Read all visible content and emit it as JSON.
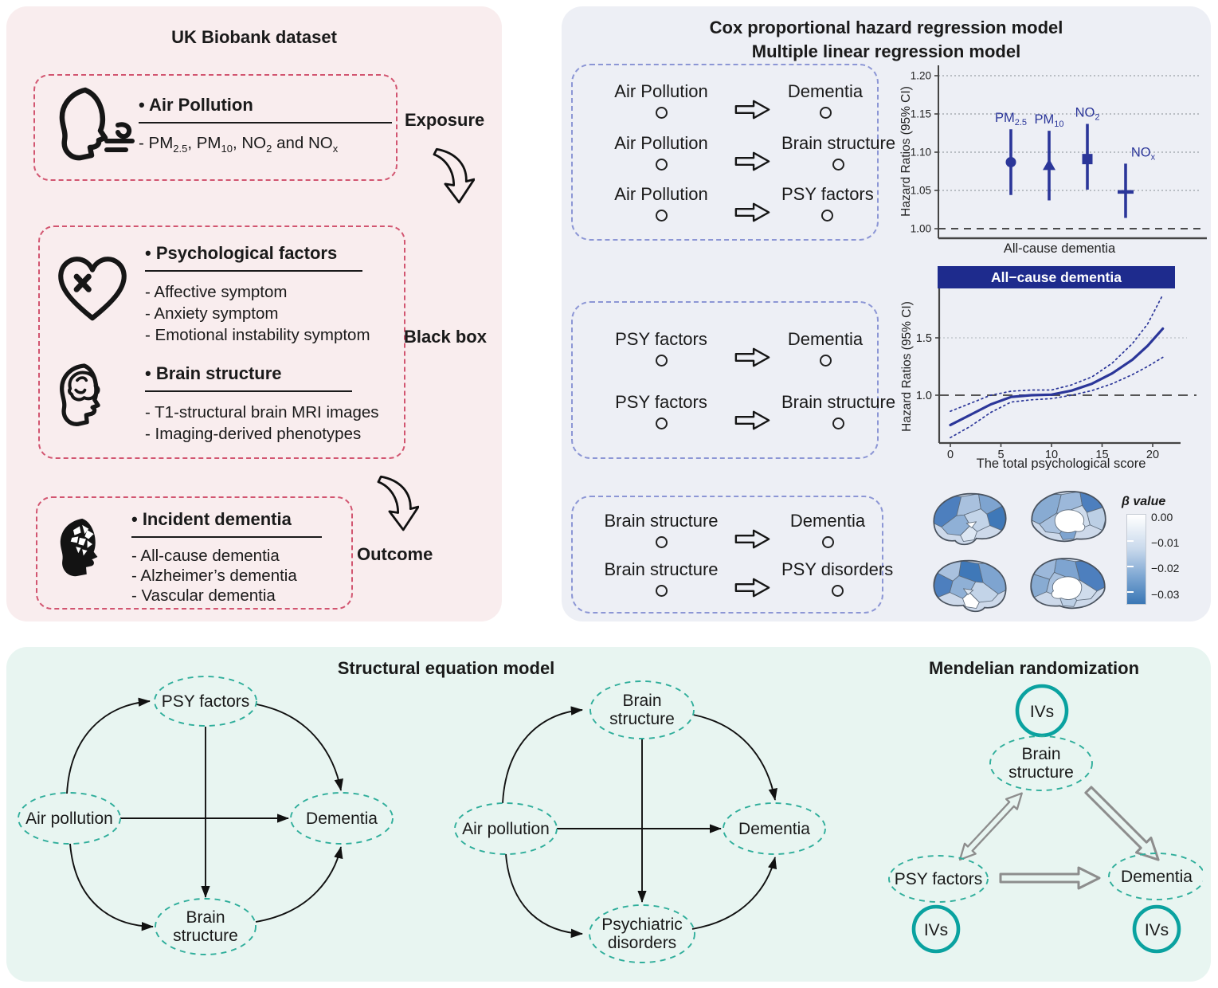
{
  "left_panel": {
    "title": "UK Biobank dataset",
    "exposure_label": "Exposure",
    "blackbox_label": "Black box",
    "outcome_label": "Outcome",
    "air_pollution": {
      "heading": "• Air Pollution",
      "pollutants": {
        "p1": "- PM",
        "s1": "2.5",
        "p2": ", PM",
        "s2": "10",
        "p3": ", NO",
        "s3": "2",
        "p4": " and NO",
        "s4": "x"
      }
    },
    "psych": {
      "heading": "• Psychological factors",
      "items": [
        "- Affective symptom",
        "- Anxiety symptom",
        "- Emotional instability symptom"
      ]
    },
    "brain": {
      "heading": "• Brain structure",
      "items": [
        "- T1-structural brain MRI images",
        "- Imaging-derived phenotypes"
      ]
    },
    "dementia": {
      "heading": "• Incident dementia",
      "items": [
        "- All-cause dementia",
        "- Alzheimer’s dementia",
        "- Vascular dementia"
      ]
    }
  },
  "right_panel": {
    "title_line1": "Cox proportional hazard regression model",
    "title_line2": "Multiple linear regression model",
    "box1": {
      "rows": [
        {
          "from": "Air Pollution",
          "to": "Dementia"
        },
        {
          "from": "Air Pollution",
          "to": "Brain structure"
        },
        {
          "from": "Air Pollution",
          "to": "PSY factors"
        }
      ]
    },
    "box2": {
      "rows": [
        {
          "from": "PSY factors",
          "to": "Dementia"
        },
        {
          "from": "PSY factors",
          "to": "Brain structure"
        }
      ]
    },
    "box3": {
      "rows": [
        {
          "from": "Brain structure",
          "to": "Dementia"
        },
        {
          "from": "Brain structure",
          "to": "PSY disorders"
        }
      ]
    },
    "colorbar": {
      "title": "β value",
      "ticks": [
        "0.00",
        "−0.01",
        "−0.02",
        "−0.03"
      ]
    }
  },
  "chart_data": [
    {
      "type": "scatter",
      "name": "forest-plot",
      "ylabel": "Hazard Ratios (95% CI)",
      "xlabel": "All-cause dementia",
      "ylim": [
        1.0,
        1.22
      ],
      "yticks": [
        1.0,
        1.05,
        1.1,
        1.15,
        1.2
      ],
      "ref_line": 1.0,
      "grid": "dotted-horizontal",
      "series": [
        {
          "name": "PM2.5",
          "label_main": "PM",
          "label_sub": "2.5",
          "marker": "circle",
          "hr": 1.087,
          "lo": 1.044,
          "hi": 1.13
        },
        {
          "name": "PM10",
          "label_main": "PM",
          "label_sub": "10",
          "marker": "triangle",
          "hr": 1.083,
          "lo": 1.037,
          "hi": 1.128
        },
        {
          "name": "NO2",
          "label_main": "NO",
          "label_sub": "2",
          "marker": "square",
          "hr": 1.091,
          "lo": 1.051,
          "hi": 1.137
        },
        {
          "name": "NOx",
          "label_main": "NO",
          "label_sub": "x",
          "marker": "dash",
          "hr": 1.048,
          "lo": 1.014,
          "hi": 1.085
        }
      ]
    },
    {
      "type": "line",
      "name": "restricted-cubic-spline",
      "title": "All−cause dementia",
      "ylabel": "Hazard Ratios (95% CI)",
      "xlabel": "The total psychological score",
      "xlim": [
        0,
        21.5
      ],
      "xticks": [
        0,
        5,
        10,
        15,
        20
      ],
      "yticks": [
        1.0,
        1.5
      ],
      "ref_line": 1.0,
      "series": [
        {
          "name": "estimate",
          "style": "solid",
          "points": [
            [
              0,
              0.74
            ],
            [
              2,
              0.83
            ],
            [
              4,
              0.92
            ],
            [
              6,
              0.985
            ],
            [
              8,
              1.0
            ],
            [
              10,
              1.005
            ],
            [
              12,
              1.04
            ],
            [
              14,
              1.1
            ],
            [
              16,
              1.19
            ],
            [
              18,
              1.31
            ],
            [
              19.5,
              1.43
            ],
            [
              21,
              1.58
            ]
          ]
        },
        {
          "name": "upper_95ci",
          "style": "dotted",
          "points": [
            [
              0,
              0.86
            ],
            [
              2,
              0.93
            ],
            [
              4,
              1.0
            ],
            [
              6,
              1.035
            ],
            [
              8,
              1.045
            ],
            [
              10,
              1.045
            ],
            [
              12,
              1.09
            ],
            [
              14,
              1.16
            ],
            [
              16,
              1.28
            ],
            [
              18,
              1.45
            ],
            [
              19.5,
              1.62
            ],
            [
              21,
              1.875
            ]
          ]
        },
        {
          "name": "lower_95ci",
          "style": "dotted",
          "points": [
            [
              0,
              0.63
            ],
            [
              2,
              0.73
            ],
            [
              4,
              0.85
            ],
            [
              6,
              0.94
            ],
            [
              8,
              0.96
            ],
            [
              10,
              0.97
            ],
            [
              12,
              1.0
            ],
            [
              14,
              1.04
            ],
            [
              16,
              1.1
            ],
            [
              18,
              1.18
            ],
            [
              19.5,
              1.25
            ],
            [
              21,
              1.33
            ]
          ]
        }
      ]
    }
  ],
  "bottom_panel": {
    "sem_title": "Structural equation model",
    "mr_title": "Mendelian randomization",
    "sem1": {
      "top": "PSY factors",
      "left": "Air pollution",
      "right": "Dementia",
      "bottom_line1": "Brain",
      "bottom_line2": "structure"
    },
    "sem2": {
      "top_line1": "Brain",
      "top_line2": "structure",
      "left": "Air pollution",
      "right": "Dementia",
      "bottom_line1": "Psychiatric",
      "bottom_line2": "disorders"
    },
    "mr": {
      "iv_top": "IVs",
      "iv_left": "IVs",
      "iv_right": "IVs",
      "node_top_line1": "Brain",
      "node_top_line2": "structure",
      "node_left": "PSY factors",
      "node_right": "Dementia"
    }
  },
  "colors": {
    "left_bg": "#f9edee",
    "left_dash": "#d25570",
    "right_bg": "#edeff5",
    "right_dash": "#8c96d5",
    "navy": "#2b3699",
    "banner": "#1e2b8d",
    "bottom_bg": "#e8f5f1",
    "teal_dash": "#2fae9b",
    "teal_strong": "#0aa2a0",
    "gray_arrow": "#8d8d8d"
  }
}
